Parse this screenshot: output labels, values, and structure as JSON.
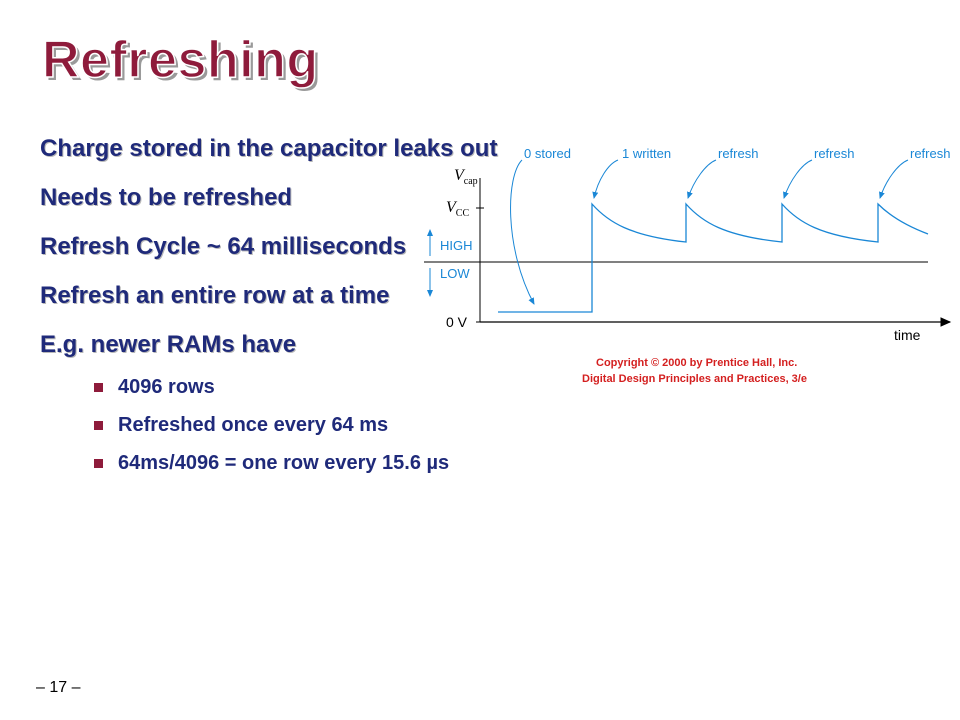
{
  "slide": {
    "title": "Refreshing",
    "page_number": "– 17 –"
  },
  "bullets": [
    "Charge stored in the capacitor leaks out",
    "Needs to be refreshed",
    "Refresh Cycle ~ 64 milliseconds",
    "Refresh an entire row at a time",
    "E.g. newer RAMs have"
  ],
  "sub_bullets": [
    "4096 rows",
    "Refreshed once every 64 ms",
    "64ms/4096 = one row every 15.6 µs"
  ],
  "diagram": {
    "labels": {
      "zero_stored": "0 stored",
      "one_written": "1 written",
      "refresh_1": "refresh",
      "refresh_2": "refresh",
      "refresh_3": "refresh"
    },
    "axis": {
      "vcap": "V",
      "vcap_sub": "cap",
      "vcc": "V",
      "vcc_sub": "CC",
      "high": "HIGH",
      "low": "LOW",
      "zero_v": "0 V",
      "time": "time"
    },
    "copyright_line1": "Copyright © 2000 by Prentice Hall, Inc.",
    "copyright_line2": "Digital Design Principles and Practices, 3/e",
    "colors": {
      "signal": "#1a87d6",
      "axis": "#000000",
      "copyright": "#d42020"
    }
  }
}
